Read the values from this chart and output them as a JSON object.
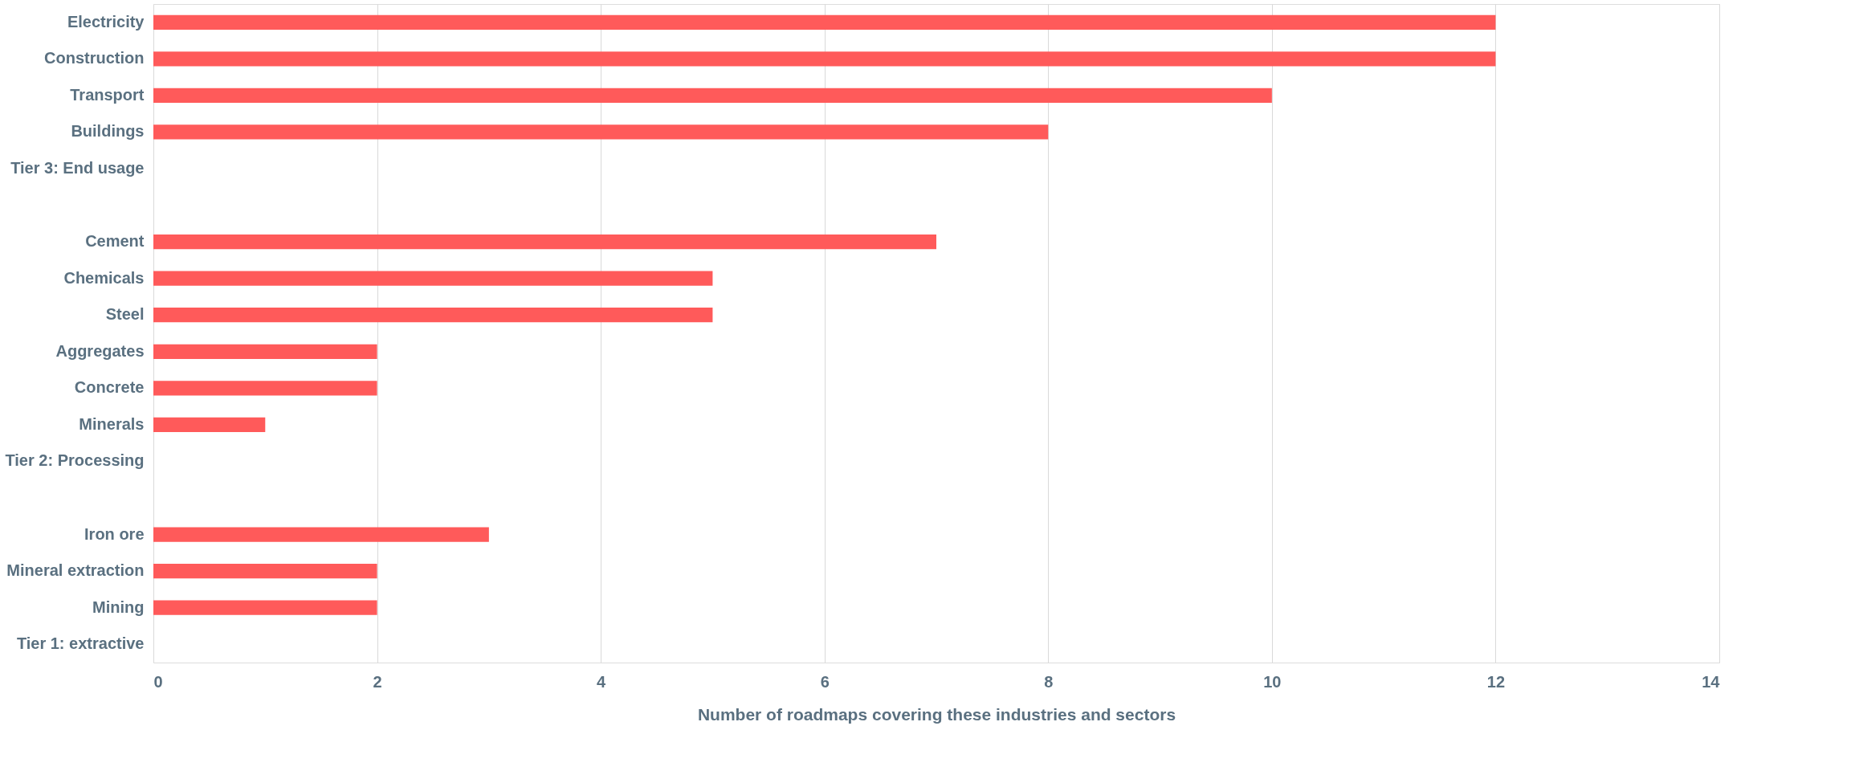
{
  "chart_data": {
    "type": "bar",
    "orientation": "horizontal",
    "xlabel": "Number of roadmaps covering these industries and sectors",
    "categories": [
      "Electricity",
      "Construction",
      "Transport",
      "Buildings",
      "Tier 3: End usage",
      null,
      "Cement",
      "Chemicals",
      "Steel",
      "Aggregates",
      "Concrete",
      "Minerals",
      "Tier 2: Processing",
      null,
      "Iron ore",
      "Mineral extraction",
      "Mining",
      "Tier 1: extractive"
    ],
    "values": [
      12,
      12,
      10,
      8,
      null,
      null,
      7,
      5,
      5,
      2,
      2,
      1,
      null,
      null,
      3,
      2,
      2,
      null
    ],
    "color": "#ff5a5a",
    "xlim": [
      0,
      14
    ],
    "xticks": [
      0,
      2,
      4,
      6,
      8,
      10,
      12,
      14
    ],
    "grid": "x"
  }
}
